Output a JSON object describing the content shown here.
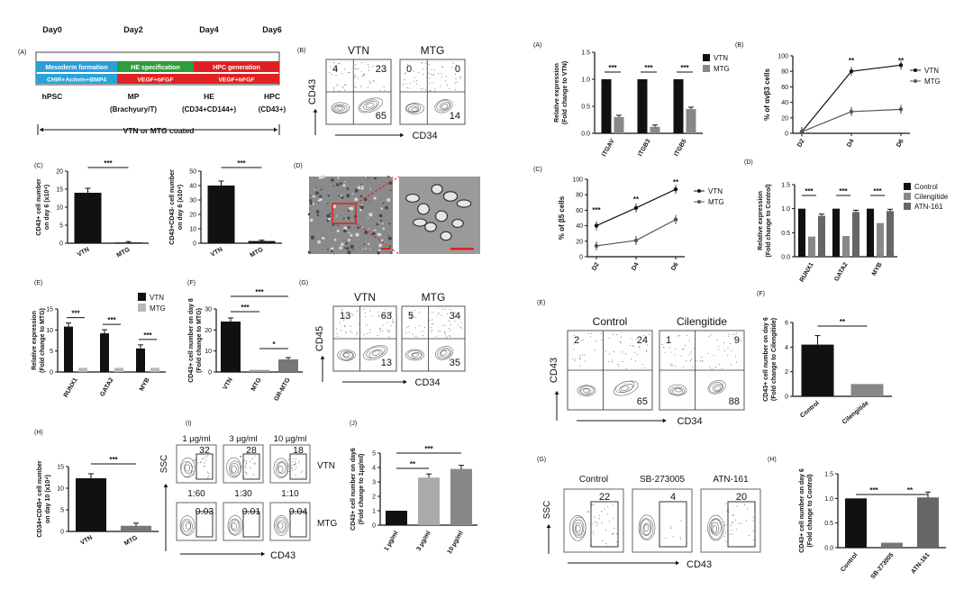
{
  "left": {
    "panelA": {
      "label": "(A)",
      "days": [
        "Day0",
        "Day2",
        "Day4",
        "Day6"
      ],
      "stages": [
        {
          "name": "Mesoderm formation",
          "color": "#29a0d8"
        },
        {
          "name": "HE specification",
          "color": "#2e9d3c"
        },
        {
          "name": "HPC generation",
          "color": "#e02020"
        }
      ],
      "media": [
        "CHIR+Activin+BMP4",
        "VEGF+bFGF",
        "VEGF+bFGF"
      ],
      "cells": [
        "hPSC",
        "MP",
        "HE",
        "HPC"
      ],
      "markers": [
        "(Brachyury/T)",
        "(CD34+CD144+)",
        "(CD43+)"
      ],
      "coating": "VTN or MTG coated"
    },
    "panelB": {
      "label": "(B)",
      "yaxis": "CD43",
      "xaxis": "CD34",
      "plots": [
        {
          "name": "VTN",
          "q": [
            "4",
            "23",
            "65"
          ]
        },
        {
          "name": "MTG",
          "q": [
            "0",
            "0",
            "14"
          ]
        }
      ]
    },
    "panelC": {
      "label": "(C)",
      "charts": [
        {
          "ylabel1": "CD43+ cell number",
          "ylabel2": "on day 6 (x10⁴)",
          "ticks": [
            "0",
            "5",
            "10",
            "15",
            "20"
          ],
          "max": 20,
          "categories": [
            "VTN",
            "MTG"
          ],
          "values": [
            14,
            0.1
          ],
          "sig": "***"
        },
        {
          "ylabel1": "CD43+CD43- cell number",
          "ylabel2": "on day 6 (x10⁴)",
          "ticks": [
            "0",
            "10",
            "20",
            "30",
            "40",
            "50"
          ],
          "max": 50,
          "categories": [
            "VTN",
            "MTG"
          ],
          "values": [
            40,
            1.5
          ],
          "sig": "***"
        }
      ]
    },
    "panelD": {
      "label": "(D)"
    },
    "panelE": {
      "label": "(E)",
      "ylabel1": "Relative expression",
      "ylabel2": "(Fold change to MTG)",
      "ticks": [
        "0",
        "5",
        "10",
        "15"
      ],
      "max": 15,
      "categories": [
        "RUNX1",
        "GATA2",
        "MYB"
      ],
      "legend": [
        "VTN",
        "MTG"
      ],
      "values_vtn": [
        10.8,
        9.2,
        5.6
      ],
      "values_mtg": [
        1,
        1,
        1
      ],
      "sig": [
        "***",
        "***",
        "***"
      ]
    },
    "panelF": {
      "label": "(F)",
      "ylabel1": "CD43+ cell number on day 8",
      "ylabel2": "(Fold change to MTG)",
      "ticks": [
        "0",
        "10",
        "20",
        "30"
      ],
      "max": 30,
      "categories": [
        "VTN",
        "MTG",
        "GR-MTG"
      ],
      "values": [
        24,
        1,
        6
      ],
      "sig": [
        "***",
        "***",
        "*"
      ]
    },
    "panelG": {
      "label": "(G)",
      "yaxis": "CD45",
      "xaxis": "CD34",
      "plots": [
        {
          "name": "VTN",
          "q": [
            "13",
            "63",
            "13"
          ]
        },
        {
          "name": "MTG",
          "q": [
            "5",
            "34",
            "35"
          ]
        }
      ]
    },
    "panelH": {
      "label": "(H)",
      "ylabel1": "CD34+CD45+ cell number",
      "ylabel2": "on day 10 (x10⁴)",
      "ticks": [
        "0",
        "5",
        "10",
        "15"
      ],
      "max": 15,
      "categories": [
        "VTN",
        "MTG"
      ],
      "values": [
        12.3,
        1.3
      ],
      "sig": "***"
    },
    "panelI": {
      "label": "(I)",
      "yaxis": "SSC",
      "xaxis": "CD43",
      "conc": [
        "1 µg/ml",
        "3 µg/ml",
        "10 µg/ml"
      ],
      "vtn_vals": [
        "32",
        "28",
        "18"
      ],
      "ratios": [
        "1:60",
        "1:30",
        "1:10"
      ],
      "mtg_vals": [
        "0.03",
        "0.01",
        "0.04"
      ],
      "row_labels": [
        "VTN",
        "MTG"
      ]
    },
    "panelJ": {
      "label": "(J)",
      "ylabel1": "CD43+ cell number on day6",
      "ylabel2": "(Fold change to 1µg/ml)",
      "ticks": [
        "0",
        "1",
        "2",
        "3",
        "4",
        "5"
      ],
      "max": 5,
      "categories": [
        "1 µg/ml",
        "3 µg/ml",
        "10 µg/ml"
      ],
      "values": [
        1,
        3.3,
        3.9
      ],
      "sig": [
        "**",
        "***"
      ]
    }
  },
  "right": {
    "panelA": {
      "label": "(A)",
      "ylabel1": "Relative expression",
      "ylabel2": "(Fold change to VTN)",
      "ticks": [
        "0.0",
        "0.5",
        "1.0",
        "1.5"
      ],
      "max": 1.5,
      "categories": [
        "ITGAV",
        "ITGB3",
        "ITGB5"
      ],
      "legend": [
        "VTN",
        "MTG"
      ],
      "values_vtn": [
        1,
        1,
        1
      ],
      "values_mtg": [
        0.3,
        0.12,
        0.45
      ],
      "sig": [
        "***",
        "***",
        "***"
      ]
    },
    "panelB": {
      "label": "(B)",
      "ylabel": "% of αvβ3 cells",
      "ticks": [
        "0",
        "20",
        "40",
        "60",
        "80",
        "100"
      ],
      "max": 100,
      "categories": [
        "D2",
        "D4",
        "D6"
      ],
      "legend": [
        "VTN",
        "MTG"
      ],
      "series_vtn": [
        2,
        80,
        88
      ],
      "series_mtg": [
        2,
        28,
        31
      ],
      "sig": [
        "**",
        "**"
      ]
    },
    "panelC": {
      "label": "(C)",
      "ylabel": "% of β5 cells",
      "ticks": [
        "0",
        "20",
        "40",
        "60",
        "80",
        "100"
      ],
      "max": 100,
      "categories": [
        "D2",
        "D4",
        "D6"
      ],
      "legend": [
        "VTN",
        "MTG"
      ],
      "series_vtn": [
        40,
        63,
        87
      ],
      "series_mtg": [
        14,
        21,
        48
      ],
      "sig": [
        "***",
        "**",
        "**"
      ]
    },
    "panelD": {
      "label": "(D)",
      "ylabel1": "Relative expression",
      "ylabel2": "(Fold change to Control)",
      "ticks": [
        "0.0",
        "0.5",
        "1.0",
        "1.5"
      ],
      "max": 1.5,
      "categories": [
        "RUNX1",
        "GATA2",
        "MYB"
      ],
      "legend": [
        "Control",
        "Cilengitide",
        "ATN-161"
      ],
      "values_ctrl": [
        1,
        1,
        1
      ],
      "values_cil": [
        0.42,
        0.43,
        0.7
      ],
      "values_atn": [
        0.85,
        0.93,
        0.95
      ],
      "sig": [
        "***",
        "***",
        "***"
      ]
    },
    "panelE": {
      "label": "(E)",
      "yaxis": "CD43",
      "xaxis": "CD34",
      "plots": [
        {
          "name": "Control",
          "q": [
            "2",
            "24",
            "65"
          ]
        },
        {
          "name": "Cilengitide",
          "q": [
            "1",
            "9",
            "88"
          ]
        }
      ]
    },
    "panelF": {
      "label": "(F)",
      "ylabel1": "CD43+ cell number on day 6",
      "ylabel2": "(Fold change to Cilengitide)",
      "ticks": [
        "0",
        "2",
        "4",
        "6"
      ],
      "max": 6,
      "categories": [
        "Control",
        "Cilengitide"
      ],
      "values": [
        4.2,
        1
      ],
      "sig": "**"
    },
    "panelG": {
      "label": "(G)",
      "yaxis": "SSC",
      "xaxis": "CD43",
      "plots": [
        {
          "name": "Control",
          "val": "22"
        },
        {
          "name": "SB-273005",
          "val": "4"
        },
        {
          "name": "ATN-161",
          "val": "20"
        }
      ]
    },
    "panelH": {
      "label": "(H)",
      "ylabel1": "CD43+ cell number on day 6",
      "ylabel2": "(Fold change to Control)",
      "ticks": [
        "0.0",
        "0.5",
        "1.0",
        "1.5"
      ],
      "max": 1.5,
      "categories": [
        "Control",
        "SB-273005",
        "ATN-161"
      ],
      "values": [
        1,
        0.1,
        1.02
      ],
      "sig": [
        "***",
        "**"
      ]
    }
  },
  "chart_data": [
    {
      "type": "bar",
      "title": "(C) left",
      "categories": [
        "VTN",
        "MTG"
      ],
      "values": [
        14,
        0.1
      ],
      "ylabel": "CD43+ cell number on day 6 (x10^4)",
      "ylim": [
        0,
        20
      ]
    },
    {
      "type": "bar",
      "title": "(C) right",
      "categories": [
        "VTN",
        "MTG"
      ],
      "values": [
        40,
        1.5
      ],
      "ylabel": "CD43+CD43- cell number on day 6 (x10^4)",
      "ylim": [
        0,
        50
      ]
    },
    {
      "type": "bar",
      "title": "(E)",
      "categories": [
        "RUNX1",
        "GATA2",
        "MYB"
      ],
      "series": [
        {
          "name": "VTN",
          "values": [
            10.8,
            9.2,
            5.6
          ]
        },
        {
          "name": "MTG",
          "values": [
            1,
            1,
            1
          ]
        }
      ],
      "ylim": [
        0,
        15
      ]
    },
    {
      "type": "bar",
      "title": "(F)",
      "categories": [
        "VTN",
        "MTG",
        "GR-MTG"
      ],
      "values": [
        24,
        1,
        6
      ],
      "ylim": [
        0,
        30
      ]
    },
    {
      "type": "bar",
      "title": "(H)",
      "categories": [
        "VTN",
        "MTG"
      ],
      "values": [
        12.3,
        1.3
      ],
      "ylim": [
        0,
        15
      ]
    },
    {
      "type": "bar",
      "title": "(J)",
      "categories": [
        "1 µg/ml",
        "3 µg/ml",
        "10 µg/ml"
      ],
      "values": [
        1,
        3.3,
        3.9
      ],
      "ylim": [
        0,
        5
      ]
    },
    {
      "type": "bar",
      "title": "(A) right",
      "categories": [
        "ITGAV",
        "ITGB3",
        "ITGB5"
      ],
      "series": [
        {
          "name": "VTN",
          "values": [
            1,
            1,
            1
          ]
        },
        {
          "name": "MTG",
          "values": [
            0.3,
            0.12,
            0.45
          ]
        }
      ],
      "ylim": [
        0,
        1.5
      ]
    },
    {
      "type": "line",
      "title": "(B) right",
      "x": [
        "D2",
        "D4",
        "D6"
      ],
      "series": [
        {
          "name": "VTN",
          "values": [
            2,
            80,
            88
          ]
        },
        {
          "name": "MTG",
          "values": [
            2,
            28,
            31
          ]
        }
      ],
      "ylim": [
        0,
        100
      ]
    },
    {
      "type": "line",
      "title": "(C) right",
      "x": [
        "D2",
        "D4",
        "D6"
      ],
      "series": [
        {
          "name": "VTN",
          "values": [
            40,
            63,
            87
          ]
        },
        {
          "name": "MTG",
          "values": [
            14,
            21,
            48
          ]
        }
      ],
      "ylim": [
        0,
        100
      ]
    },
    {
      "type": "bar",
      "title": "(D) right",
      "categories": [
        "RUNX1",
        "GATA2",
        "MYB"
      ],
      "series": [
        {
          "name": "Control",
          "values": [
            1,
            1,
            1
          ]
        },
        {
          "name": "Cilengitide",
          "values": [
            0.42,
            0.43,
            0.7
          ]
        },
        {
          "name": "ATN-161",
          "values": [
            0.85,
            0.93,
            0.95
          ]
        }
      ],
      "ylim": [
        0,
        1.5
      ]
    },
    {
      "type": "bar",
      "title": "(F) right",
      "categories": [
        "Control",
        "Cilengitide"
      ],
      "values": [
        4.2,
        1
      ],
      "ylim": [
        0,
        6
      ]
    },
    {
      "type": "bar",
      "title": "(H) right",
      "categories": [
        "Control",
        "SB-273005",
        "ATN-161"
      ],
      "values": [
        1,
        0.1,
        1.02
      ],
      "ylim": [
        0,
        1.5
      ]
    }
  ]
}
